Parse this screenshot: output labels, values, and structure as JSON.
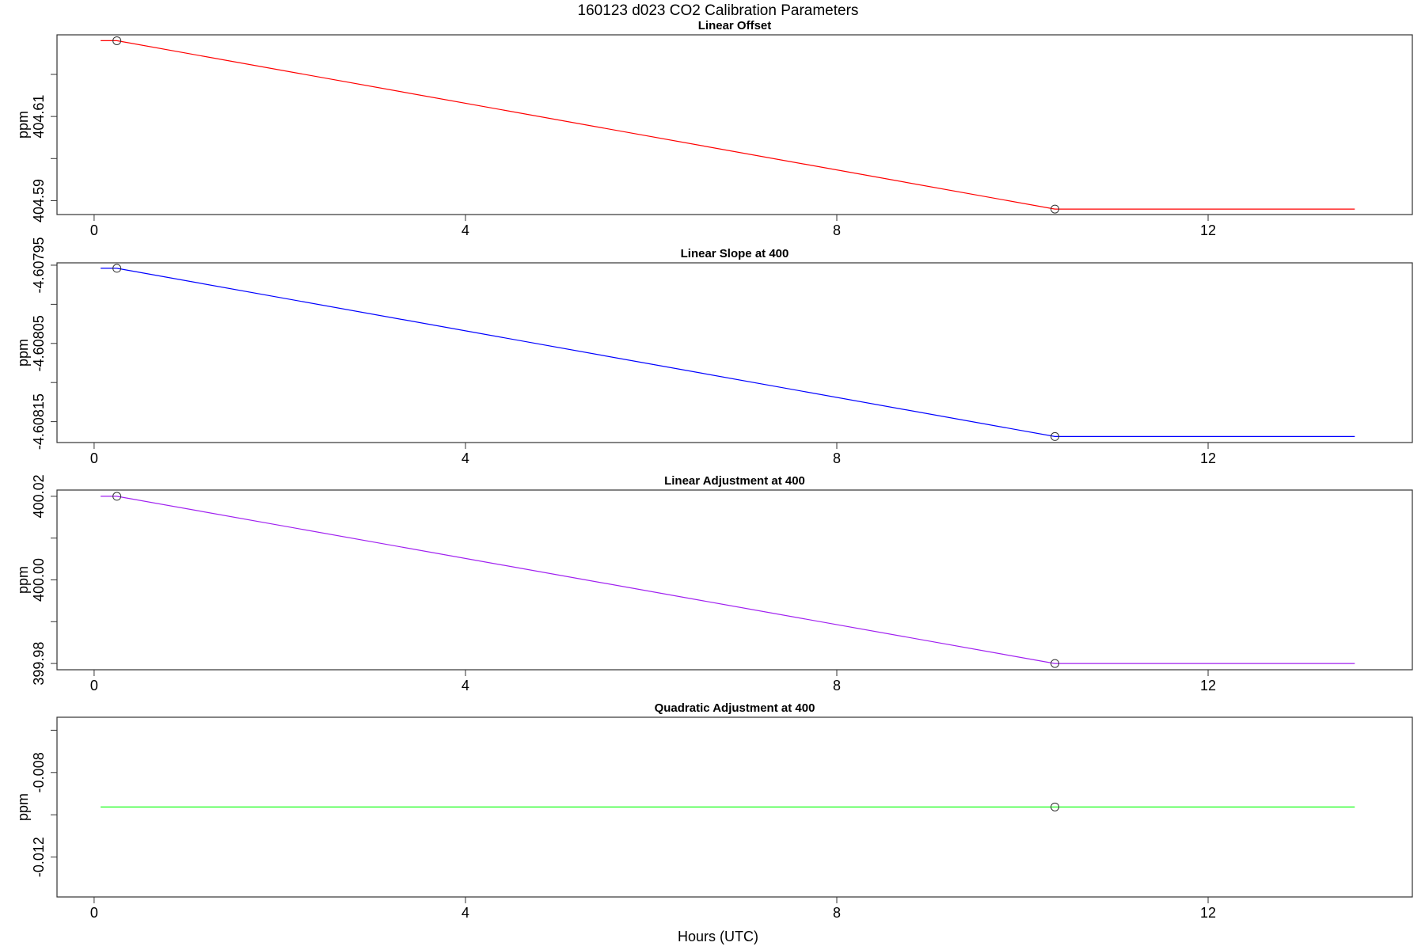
{
  "chart_data": {
    "title": "160123   d023   CO2 Calibration Parameters",
    "xlabel": "Hours (UTC)",
    "panels": [
      {
        "type": "line",
        "title": "Linear Offset",
        "ylabel": "ppm",
        "color": "#ff0000",
        "xlim": [
          -0.4,
          14.2
        ],
        "ylim": [
          404.5867,
          404.6294
        ],
        "xticks": [
          0,
          4,
          8,
          12
        ],
        "yticks": [
          404.59,
          404.6,
          404.61,
          404.62
        ],
        "ytick_labels": [
          "404.59",
          "",
          "404.61",
          ""
        ],
        "x": [
          0.07,
          0.245,
          10.35,
          13.58
        ],
        "y": [
          404.628,
          404.628,
          404.588,
          404.588
        ],
        "markers": [
          {
            "x": 0.245,
            "y": 404.628
          },
          {
            "x": 10.35,
            "y": 404.588
          }
        ]
      },
      {
        "type": "line",
        "title": "Linear Slope at 400",
        "ylabel": "ppm",
        "color": "#0000ff",
        "xlim": [
          -0.4,
          14.2
        ],
        "ylim": [
          -4.6081767,
          -4.607947
        ],
        "xticks": [
          0,
          4,
          8,
          12
        ],
        "yticks": [
          -4.60795,
          -4.608,
          -4.60805,
          -4.6081,
          -4.60815
        ],
        "ytick_labels": [
          "-4.60795",
          "",
          "-4.60805",
          "",
          "-4.60815"
        ],
        "x": [
          0.07,
          0.245,
          10.35,
          13.58
        ],
        "y": [
          -4.607954,
          -4.607954,
          -4.608169,
          -4.608169
        ],
        "markers": [
          {
            "x": 0.245,
            "y": -4.607954
          },
          {
            "x": 10.35,
            "y": -4.608169
          }
        ]
      },
      {
        "type": "line",
        "title": "Linear Adjustment at 400",
        "ylabel": "ppm",
        "color": "#a020f0",
        "xlim": [
          -0.4,
          14.2
        ],
        "ylim": [
          399.9785,
          400.0215
        ],
        "xticks": [
          0,
          4,
          8,
          12
        ],
        "yticks": [
          399.98,
          399.99,
          400.0,
          400.01,
          400.02
        ],
        "ytick_labels": [
          "399.98",
          "",
          "400.00",
          "",
          "400.02"
        ],
        "x": [
          0.07,
          0.245,
          10.35,
          13.58
        ],
        "y": [
          400.02,
          400.02,
          399.98,
          399.98
        ],
        "markers": [
          {
            "x": 0.245,
            "y": 400.02
          },
          {
            "x": 10.35,
            "y": 399.98
          }
        ]
      },
      {
        "type": "line",
        "title": "Quadratic Adjustment at 400",
        "ylabel": "ppm",
        "color": "#00ff00",
        "xlim": [
          -0.4,
          14.2
        ],
        "ylim": [
          -0.013888,
          -0.005386
        ],
        "xticks": [
          0,
          4,
          8,
          12
        ],
        "yticks": [
          -0.006,
          -0.008,
          -0.01,
          -0.012
        ],
        "ytick_labels": [
          "",
          "-0.008",
          "",
          "-0.012"
        ],
        "x": [
          0.07,
          10.35,
          13.58
        ],
        "y": [
          -0.00963,
          -0.00963,
          -0.00963
        ],
        "markers": [
          {
            "x": 10.35,
            "y": -0.00963
          }
        ]
      }
    ]
  }
}
